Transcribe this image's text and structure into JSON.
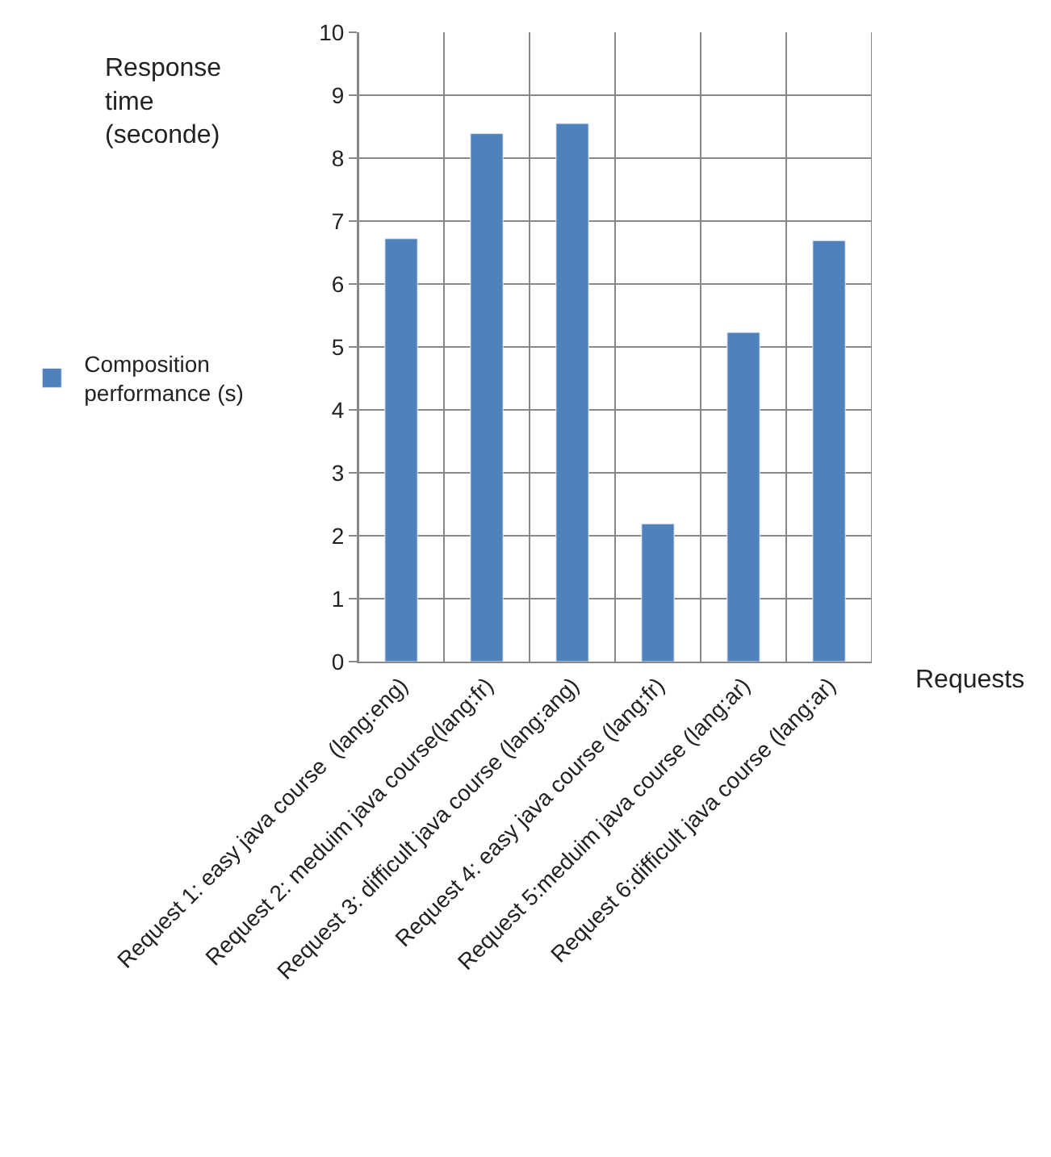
{
  "chart_data": {
    "type": "bar",
    "ylabel": "Response time (seconde)",
    "xlabel": "Requests",
    "categories": [
      "Request 1: easy java course  (lang:eng)",
      "Request 2: meduim java course(lang:fr)",
      "Request 3: difficult java course (lang:ang)",
      "Request 4: easy java course (lang:fr)",
      "Request 5:meduim java course (lang:ar)",
      "Request 6:difficult java course (lang:ar)"
    ],
    "series": [
      {
        "name": "Composition performance (s)",
        "color": "#4f81bd",
        "values": [
          6.72,
          8.39,
          8.55,
          2.19,
          5.23,
          6.69
        ]
      }
    ],
    "ylim": [
      0,
      10
    ],
    "yticks": [
      0,
      1,
      2,
      3,
      4,
      5,
      6,
      7,
      8,
      9,
      10
    ],
    "grid": true,
    "legend": "left"
  }
}
